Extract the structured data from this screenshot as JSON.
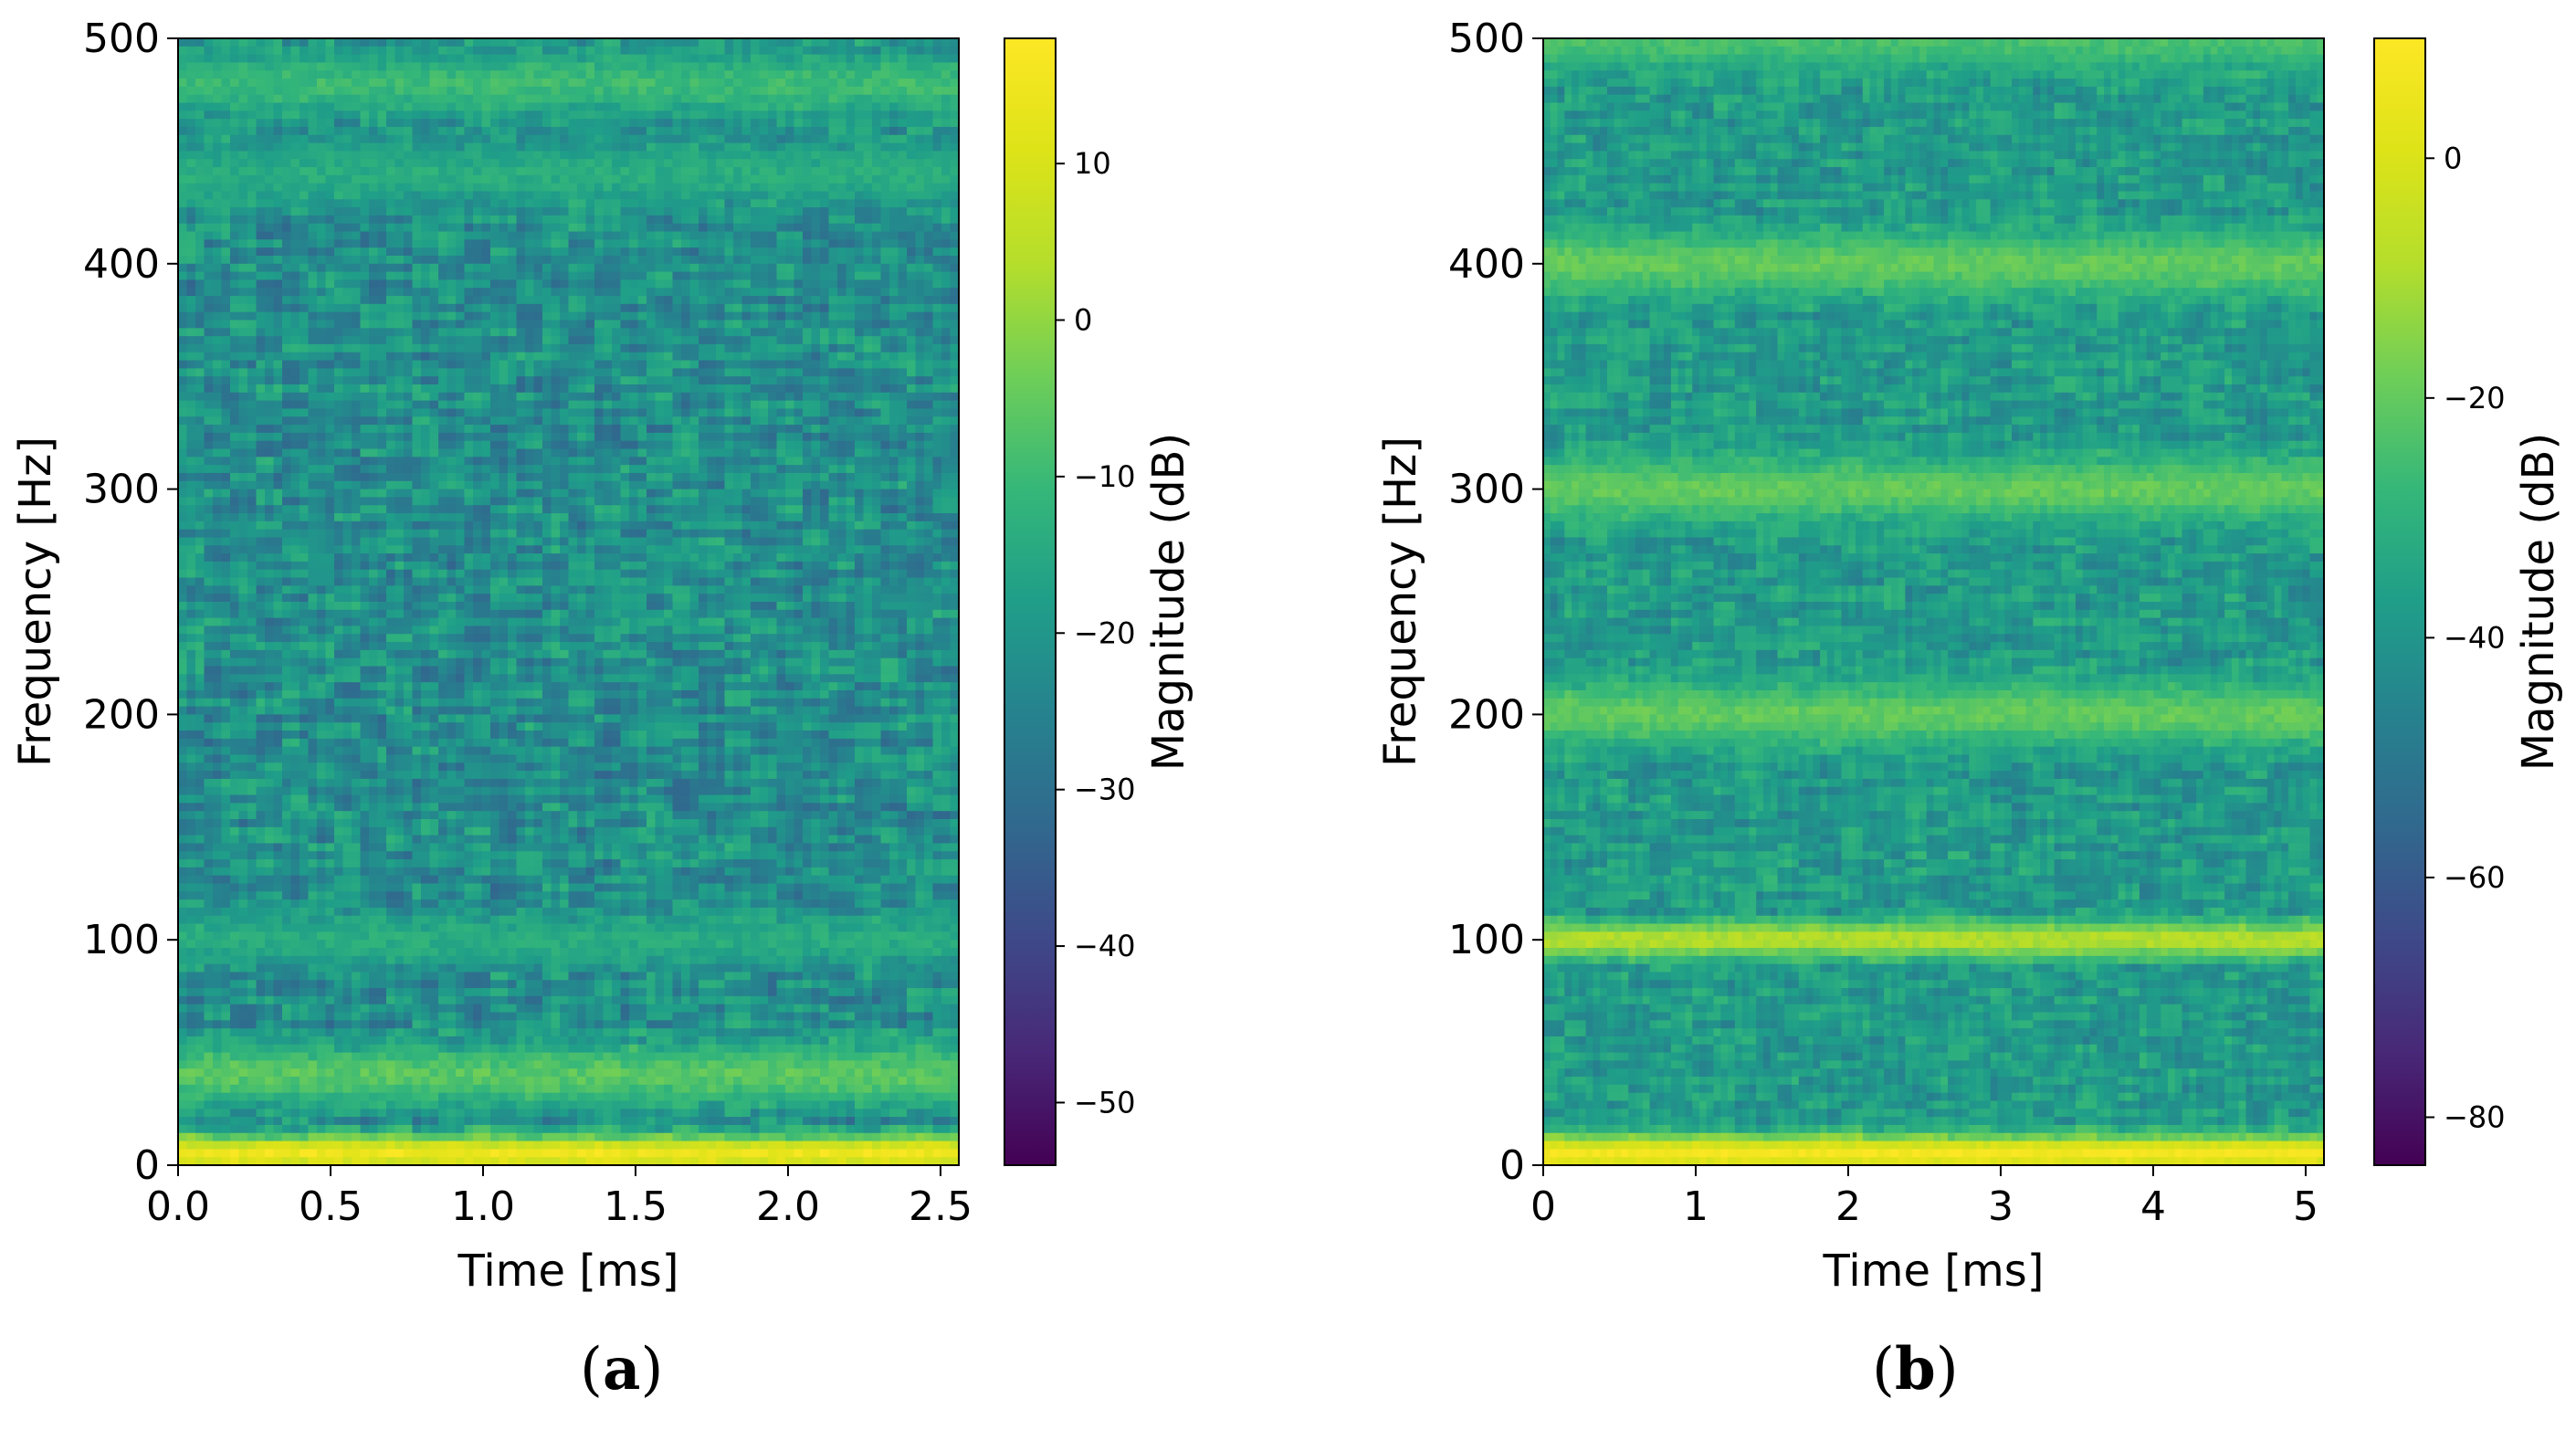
{
  "chart_data": [
    {
      "type": "heatmap",
      "panel_label": "a",
      "title": "",
      "xlabel": "Time [ms]",
      "ylabel": "Frequency [Hz]",
      "xlim": [
        0,
        2.56
      ],
      "ylim": [
        0,
        500
      ],
      "xticks": [
        0.0,
        0.5,
        1.0,
        1.5,
        2.0,
        2.5
      ],
      "xtick_labels": [
        "0.0",
        "0.5",
        "1.0",
        "1.5",
        "2.0",
        "2.5"
      ],
      "yticks": [
        0,
        100,
        200,
        300,
        400,
        500
      ],
      "ytick_labels": [
        "0",
        "100",
        "200",
        "300",
        "400",
        "500"
      ],
      "colorbar": {
        "label": "Magnitude (dB)",
        "range": [
          -54,
          18
        ],
        "ticks": [
          10,
          0,
          -10,
          -20,
          -30,
          -40,
          -50
        ],
        "tick_labels": [
          "10",
          "0",
          "−10",
          "−20",
          "−30",
          "−40",
          "−50"
        ],
        "colormap": "viridis"
      },
      "background_level_db": -22,
      "bands": [
        {
          "freq_hz": 5,
          "level_db": 15,
          "width_hz": 6
        },
        {
          "freq_hz": 40,
          "level_db": -6,
          "width_hz": 10
        },
        {
          "freq_hz": 100,
          "level_db": -14,
          "width_hz": 8
        },
        {
          "freq_hz": 480,
          "level_db": -10,
          "width_hz": 10
        },
        {
          "freq_hz": 440,
          "level_db": -14,
          "width_hz": 10
        }
      ]
    },
    {
      "type": "heatmap",
      "panel_label": "b",
      "title": "",
      "xlabel": "Time [ms]",
      "ylabel": "Frequency [Hz]",
      "xlim": [
        0,
        5.12
      ],
      "ylim": [
        0,
        500
      ],
      "xticks": [
        0,
        1,
        2,
        3,
        4,
        5
      ],
      "xtick_labels": [
        "0",
        "1",
        "2",
        "3",
        "4",
        "5"
      ],
      "yticks": [
        0,
        100,
        200,
        300,
        400,
        500
      ],
      "ytick_labels": [
        "0",
        "100",
        "200",
        "300",
        "400",
        "500"
      ],
      "colorbar": {
        "label": "Magnitude (dB)",
        "range": [
          -84,
          10
        ],
        "ticks": [
          0,
          -20,
          -40,
          -60,
          -80
        ],
        "tick_labels": [
          "0",
          "−20",
          "−40",
          "−60",
          "−80"
        ],
        "colormap": "viridis"
      },
      "background_level_db": -38,
      "bands": [
        {
          "freq_hz": 5,
          "level_db": 8,
          "width_hz": 6
        },
        {
          "freq_hz": 100,
          "level_db": -8,
          "width_hz": 6
        },
        {
          "freq_hz": 200,
          "level_db": -20,
          "width_hz": 10
        },
        {
          "freq_hz": 300,
          "level_db": -20,
          "width_hz": 10
        },
        {
          "freq_hz": 400,
          "level_db": -20,
          "width_hz": 10
        },
        {
          "freq_hz": 500,
          "level_db": -24,
          "width_hz": 10
        }
      ]
    }
  ]
}
